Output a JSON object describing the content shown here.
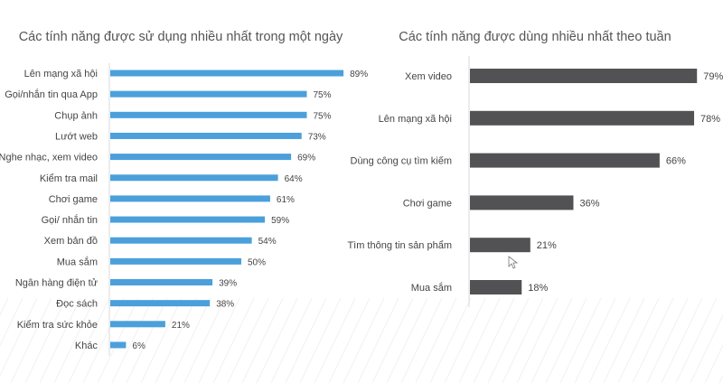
{
  "chart_data": [
    {
      "type": "bar",
      "orientation": "horizontal",
      "title": "Các tính năng được sử dụng nhiều nhất trong một ngày",
      "categories": [
        "Lên mạng xã hội",
        "Gọi/nhắn tin qua App",
        "Chụp ảnh",
        "Lướt web",
        "Nghe nhạc, xem video",
        "Kiểm tra mail",
        "Chơi game",
        "Gọi/ nhắn tin",
        "Xem bản đồ",
        "Mua sắm",
        "Ngân hàng điện tử",
        "Đọc sách",
        "Kiểm tra sức khỏe",
        "Khác"
      ],
      "values": [
        89,
        75,
        75,
        73,
        69,
        64,
        61,
        59,
        54,
        50,
        39,
        38,
        21,
        6
      ],
      "value_labels": [
        "89%",
        "75%",
        "75%",
        "73%",
        "69%",
        "64%",
        "61%",
        "59%",
        "54%",
        "50%",
        "39%",
        "38%",
        "21%",
        "6%"
      ],
      "unit": "%",
      "color": "#4ba0db",
      "grid": false
    },
    {
      "type": "bar",
      "orientation": "horizontal",
      "title": "Các tính năng được dùng nhiều nhất theo tuần",
      "categories": [
        "Xem video",
        "Lên mạng xã hội",
        "Dùng công cụ tìm kiếm",
        "Chơi game",
        "Tìm thông tin sản phẩm",
        "Mua sắm"
      ],
      "values": [
        79,
        78,
        66,
        36,
        21,
        18
      ],
      "value_labels": [
        "79%",
        "78%",
        "66%",
        "36%",
        "21%",
        "18%"
      ],
      "unit": "%",
      "color": "#525255",
      "grid": false
    }
  ]
}
